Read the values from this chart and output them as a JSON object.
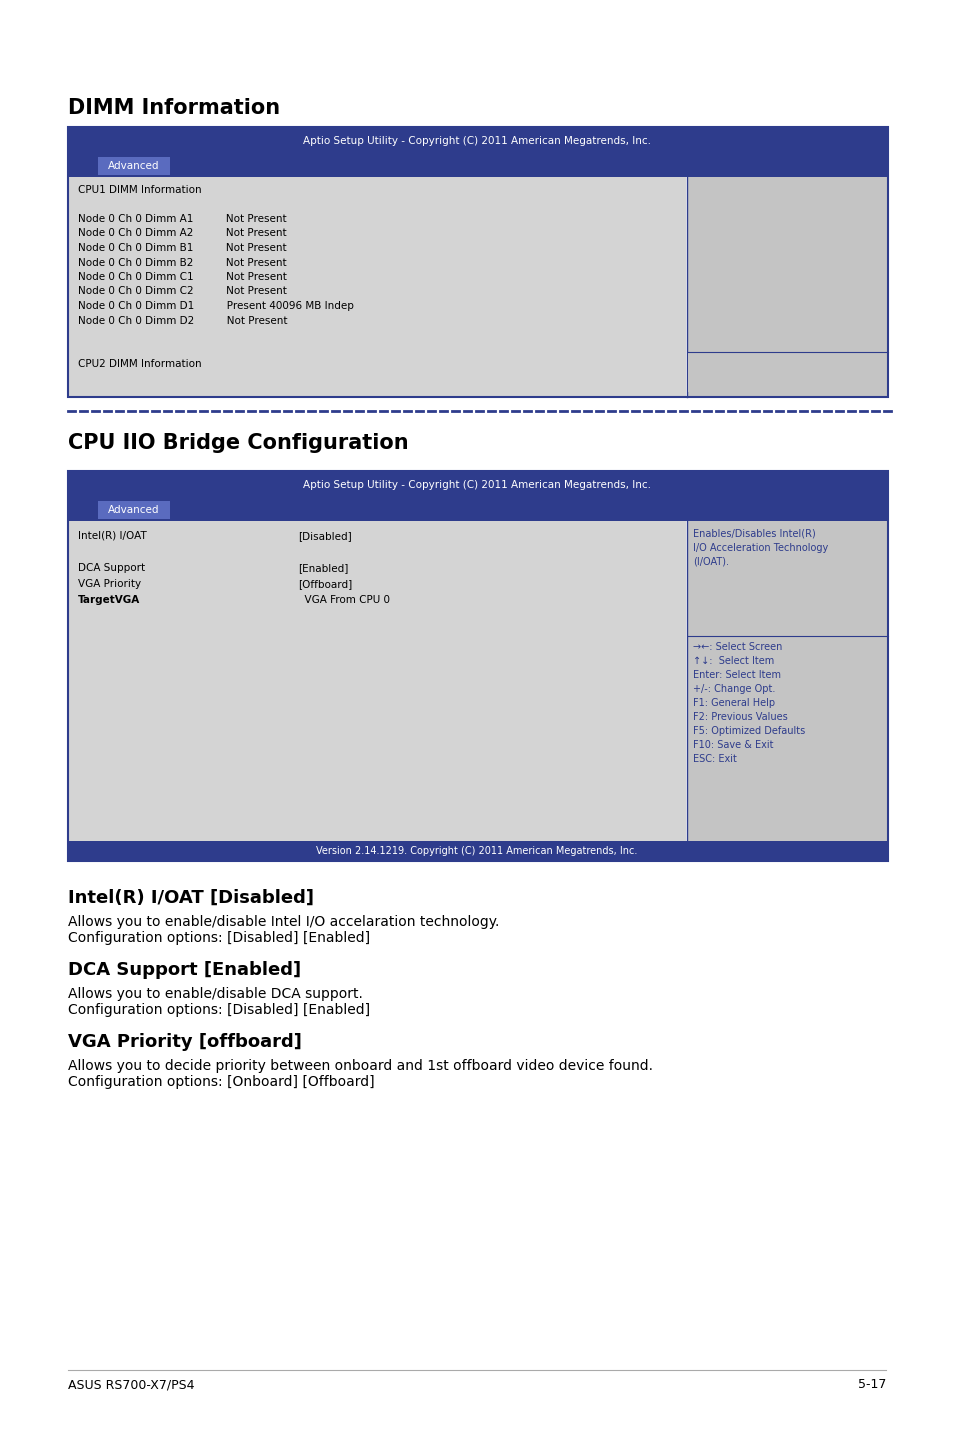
{
  "page_bg": "#ffffff",
  "header_bg": "#2e3c8c",
  "header_text_color": "#ffffff",
  "tab_bg": "#5a6bbf",
  "tab_text_color": "#ffffff",
  "bios_bg": "#d4d4d4",
  "bios_text_color": "#000000",
  "bios_blue_text": "#2e3c8c",
  "right_panel_bg": "#c4c4c4",
  "border_color": "#2e3c8c",
  "dashed_color": "#2e3c8c",
  "section1_title": "DIMM Information",
  "section1_header": "Aptio Setup Utility - Copyright (C) 2011 American Megatrends, Inc.",
  "section1_tab": "Advanced",
  "dimm_lines": [
    "CPU1 DIMM Information",
    "",
    "Node 0 Ch 0 Dimm A1          Not Present",
    "Node 0 Ch 0 Dimm A2          Not Present",
    "Node 0 Ch 0 Dimm B1          Not Present",
    "Node 0 Ch 0 Dimm B2          Not Present",
    "Node 0 Ch 0 Dimm C1          Not Present",
    "Node 0 Ch 0 Dimm C2          Not Present",
    "Node 0 Ch 0 Dimm D1          Present 40096 MB Indep",
    "Node 0 Ch 0 Dimm D2          Not Present",
    "",
    "",
    "CPU2 DIMM Information"
  ],
  "section2_title": "CPU IIO Bridge Configuration",
  "section2_header": "Aptio Setup Utility - Copyright (C) 2011 American Megatrends, Inc.",
  "section2_tab": "Advanced",
  "bios2_col1": [
    "Intel(R) I/OAT",
    "",
    "DCA Support",
    "VGA Priority",
    "TargetVGA"
  ],
  "bios2_col2": [
    "[Disabled]",
    "",
    "[Enabled]",
    "[Offboard]",
    "  VGA From CPU 0"
  ],
  "bios2_col1_bold": [
    false,
    false,
    false,
    false,
    true
  ],
  "bios2_right_lines": [
    "Enables/Disables Intel(R)",
    "I/O Acceleration Technology",
    "(I/OAT)."
  ],
  "bios2_nav_lines": [
    "→←: Select Screen",
    "↑↓:  Select Item",
    "Enter: Select Item",
    "+/-: Change Opt.",
    "F1: General Help",
    "F2: Previous Values",
    "F5: Optimized Defaults",
    "F10: Save & Exit",
    "ESC: Exit"
  ],
  "section2_footer": "Version 2.14.1219. Copyright (C) 2011 American Megatrends, Inc.",
  "sub1_title": "Intel(R) I/OAT [Disabled]",
  "sub1_line1": "Allows you to enable/disable Intel I/O accelaration technology.",
  "sub1_line2": "Configuration options: [Disabled] [Enabled]",
  "sub2_title": "DCA Support [Enabled]",
  "sub2_line1": "Allows you to enable/disable DCA support.",
  "sub2_line2": "Configuration options: [Disabled] [Enabled]",
  "sub3_title": "VGA Priority [offboard]",
  "sub3_line1": "Allows you to decide priority between onboard and 1st offboard video device found.",
  "sub3_line2": "Configuration options: [Onboard] [Offboard]",
  "footer_left": "ASUS RS700-X7/PS4",
  "footer_right": "5-17"
}
